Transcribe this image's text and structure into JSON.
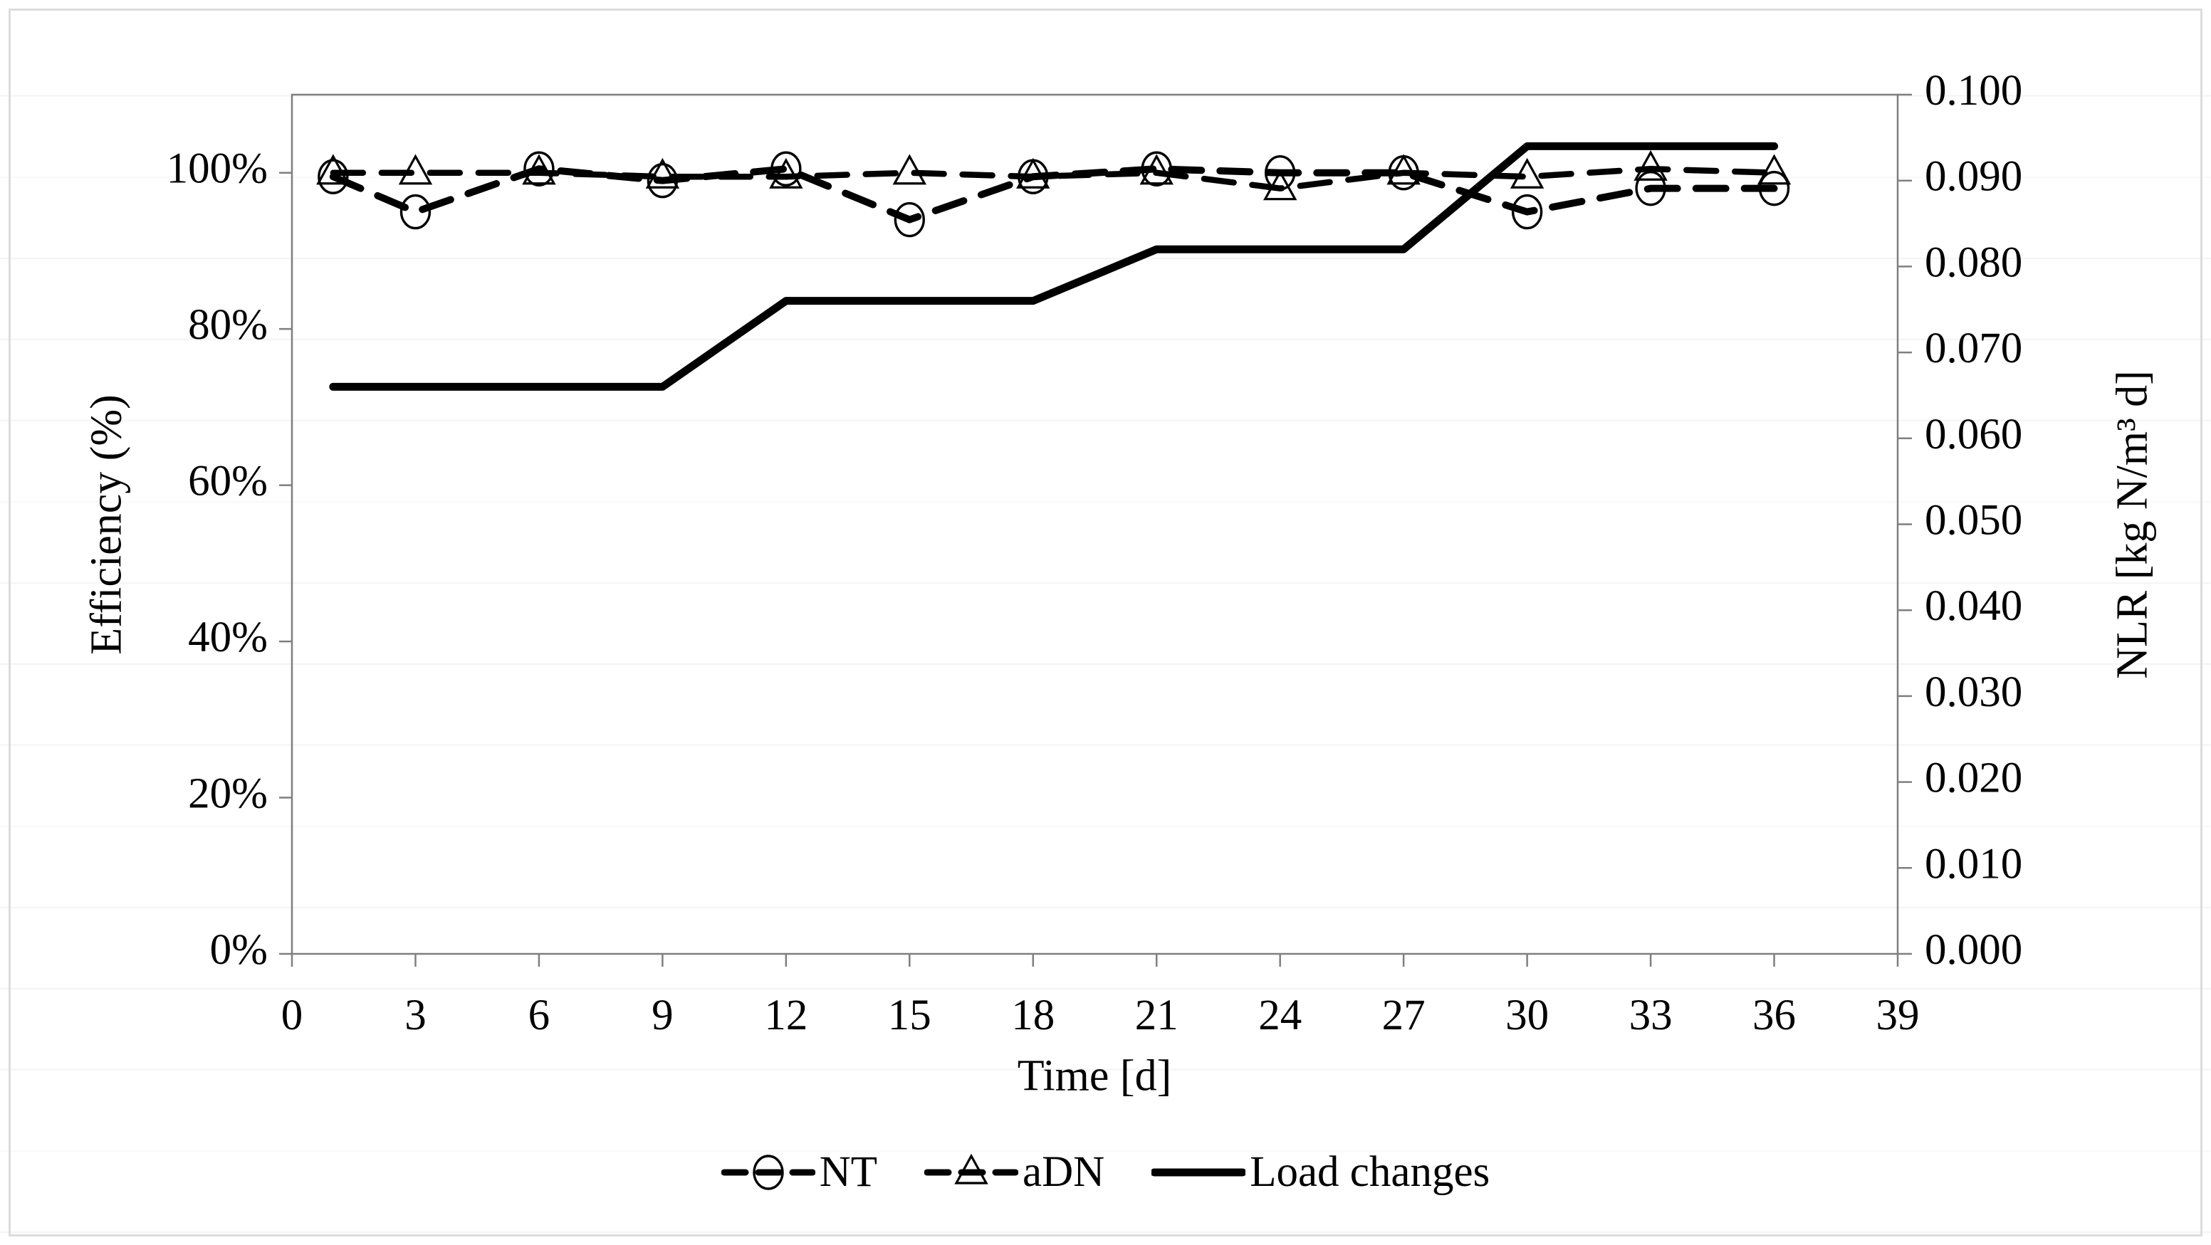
{
  "chart_data": {
    "type": "line",
    "title": "",
    "x_axis": {
      "label": "Time [d]",
      "ticks": [
        "0",
        "3",
        "6",
        "9",
        "12",
        "15",
        "18",
        "21",
        "24",
        "27",
        "30",
        "33",
        "36",
        "39"
      ],
      "range": [
        0,
        39
      ]
    },
    "left_axis": {
      "label": "Efficiency (%)",
      "ticks": [
        "100%",
        "80%",
        "60%",
        "40%",
        "20%",
        "0%"
      ],
      "tick_values": [
        100,
        80,
        60,
        40,
        20,
        0
      ],
      "range": [
        0,
        110
      ]
    },
    "right_axis": {
      "label": "NLR [kg N/m³ d]",
      "ticks": [
        "0.100",
        "0.090",
        "0.080",
        "0.070",
        "0.060",
        "0.050",
        "0.040",
        "0.030",
        "0.020",
        "0.010",
        "0.000"
      ],
      "range": [
        0,
        0.1
      ]
    },
    "categories": [
      1,
      3,
      6,
      9,
      12,
      15,
      18,
      21,
      24,
      27,
      30,
      33,
      36
    ],
    "series": [
      {
        "name": "NT",
        "axis": "left",
        "marker": "circle",
        "line": "dashed",
        "values": [
          99.5,
          95,
          100.5,
          99,
          100.5,
          94,
          99.5,
          100.5,
          100,
          100,
          95,
          98,
          98
        ]
      },
      {
        "name": "aDN",
        "axis": "left",
        "marker": "triangle",
        "line": "dashed",
        "values": [
          100,
          100,
          100,
          99.5,
          99.5,
          100,
          99.5,
          100,
          98,
          100,
          99.5,
          100.5,
          100
        ]
      },
      {
        "name": "Load changes",
        "axis": "right",
        "marker": "none",
        "line": "solid",
        "x": [
          1,
          9,
          12,
          18,
          21,
          27,
          30,
          36
        ],
        "values": [
          0.066,
          0.066,
          0.076,
          0.076,
          0.082,
          0.082,
          0.094,
          0.094
        ]
      }
    ],
    "legend": [
      "NT",
      "aDN",
      "Load changes"
    ],
    "legend_position": "bottom",
    "grid": "off",
    "colors": {
      "series": "#000000",
      "axis_line": "#7f7f7f",
      "tick_label": "#000000",
      "frame": "#dcdcdc"
    }
  }
}
